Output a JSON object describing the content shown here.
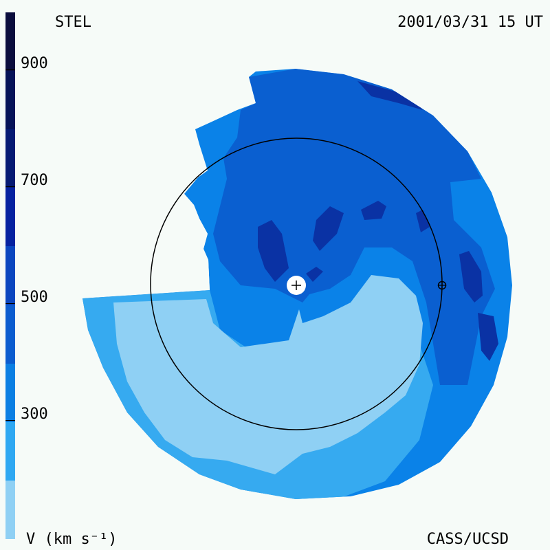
{
  "header": {
    "instrument": "STEL",
    "datetime": "2001/03/31 15 UT"
  },
  "footer": {
    "units": "V (km s⁻¹)",
    "credit": "CASS/UCSD"
  },
  "colorbar": {
    "ticks": [
      "900",
      "700",
      "500",
      "300"
    ],
    "colors_top_to_bottom": [
      "#0a0d3d",
      "#061358",
      "#051a73",
      "#0522a0",
      "#0a46bf",
      "#0a5ccf",
      "#0a7fe3",
      "#2ea8f2",
      "#8fd0f4"
    ]
  },
  "colors": {
    "background": "#f6fbf8",
    "level_250": "#8fd0f4",
    "level_350": "#36aaf0",
    "level_400": "#0a82e8",
    "level_450": "#0a5fd0",
    "level_500": "#0a4ec0",
    "level_600": "#0a32a4"
  },
  "icons": {
    "sun": "sun-marker-icon",
    "earth": "earth-marker-icon"
  }
}
